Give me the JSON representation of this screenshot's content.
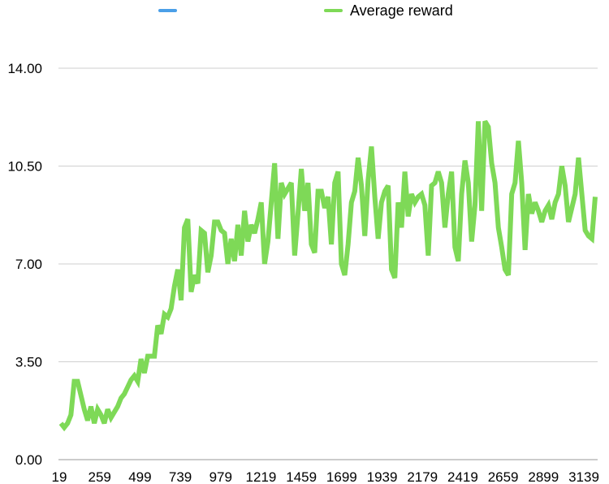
{
  "chart_data": {
    "type": "line",
    "title": "",
    "xlabel": "",
    "ylabel": "",
    "ylim": [
      0,
      14
    ],
    "yticks": [
      "0.00",
      "3.50",
      "7.00",
      "10.50",
      "14.00"
    ],
    "xticks": [
      "19",
      "259",
      "499",
      "739",
      "979",
      "1219",
      "1459",
      "1699",
      "1939",
      "2179",
      "2419",
      "2659",
      "2899",
      "3139"
    ],
    "grid": true,
    "legend_placement": "top",
    "series": [
      {
        "name": "",
        "color": "#4a9fe8",
        "values": []
      },
      {
        "name": "Average reward",
        "color": "#7ed957",
        "values": [
          1.3,
          1.15,
          1.3,
          1.6,
          2.8,
          2.8,
          2.3,
          1.8,
          1.4,
          1.9,
          1.3,
          1.8,
          1.6,
          1.3,
          1.8,
          1.5,
          1.7,
          1.9,
          2.2,
          2.35,
          2.6,
          2.85,
          3.0,
          2.8,
          3.6,
          3.1,
          3.7,
          3.7,
          3.7,
          4.8,
          4.5,
          5.2,
          5.1,
          5.4,
          6.2,
          6.8,
          5.7,
          8.3,
          8.6,
          6.0,
          6.6,
          6.3,
          8.2,
          8.1,
          6.7,
          7.3,
          8.5,
          8.5,
          8.2,
          8.1,
          7.0,
          7.9,
          7.1,
          8.4,
          7.3,
          8.9,
          7.8,
          8.4,
          8.1,
          8.6,
          9.2,
          7.0,
          7.8,
          9.2,
          10.6,
          7.9,
          9.9,
          9.5,
          9.7,
          9.9,
          7.3,
          8.8,
          10.4,
          8.9,
          9.9,
          7.7,
          7.4,
          9.6,
          9.6,
          9.0,
          9.4,
          7.7,
          9.9,
          10.3,
          7.0,
          6.6,
          7.7,
          9.2,
          9.6,
          10.8,
          9.8,
          8.0,
          10.0,
          11.2,
          9.4,
          7.9,
          9.2,
          9.6,
          9.8,
          6.8,
          6.5,
          9.2,
          8.3,
          10.3,
          8.7,
          9.5,
          9.2,
          9.4,
          9.5,
          9.1,
          7.3,
          9.8,
          9.9,
          10.3,
          9.9,
          8.3,
          9.5,
          10.3,
          7.6,
          7.1,
          9.5,
          10.7,
          9.9,
          7.8,
          9.1,
          12.1,
          8.9,
          12.1,
          11.9,
          10.6,
          9.9,
          8.3,
          7.6,
          6.8,
          6.6,
          9.5,
          9.9,
          11.4,
          9.9,
          7.5,
          9.5,
          8.8,
          9.2,
          8.9,
          8.5,
          8.9,
          9.1,
          8.6,
          9.2,
          9.5,
          10.5,
          9.8,
          8.5,
          9.0,
          9.5,
          10.8,
          9.5,
          8.2,
          8.0,
          7.9,
          9.4
        ]
      }
    ]
  }
}
